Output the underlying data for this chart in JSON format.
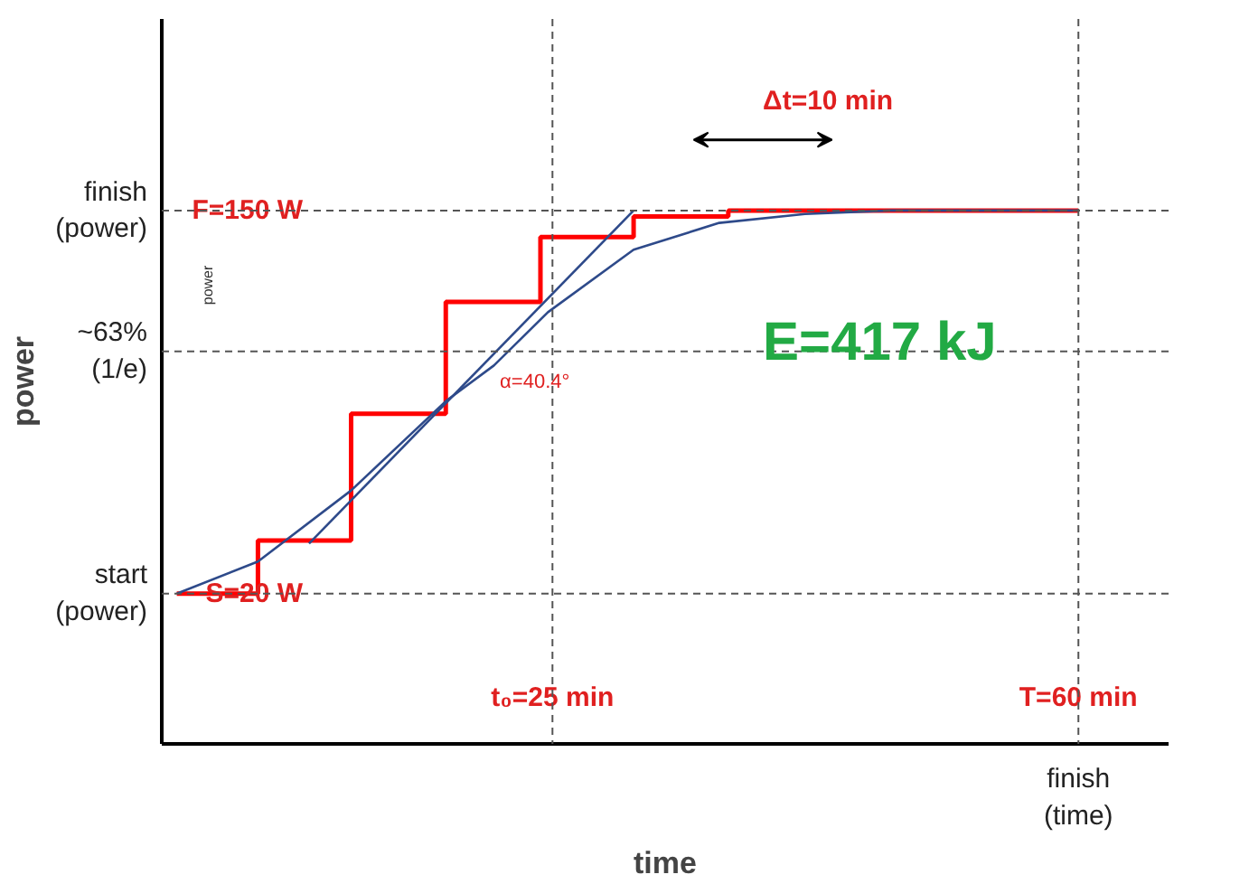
{
  "chart_data": {
    "type": "line",
    "xlabel": "time",
    "ylabel": "power",
    "xlim": [
      -1,
      66
    ],
    "ylim": [
      -31,
      215
    ],
    "xticks": [
      {
        "value": 25,
        "label": "t₀=25 min"
      },
      {
        "value": 60,
        "label": "T=60 min"
      }
    ],
    "yticks": [
      {
        "value": 20,
        "label": "S=20 W"
      },
      {
        "value": 150,
        "label": "F=150 W"
      }
    ],
    "grid": false,
    "marker": "none",
    "series": [
      {
        "type": "step",
        "color": "#ff0000",
        "x": [
          0,
          5.4,
          11.6,
          17.9,
          24.2,
          30.4,
          36.7,
          60
        ],
        "values": [
          20,
          38,
          81,
          119,
          141,
          148,
          150,
          150
        ]
      },
      {
        "color": "#2e4a8a",
        "x": [
          0,
          5.4,
          11.6,
          17.9,
          21.1,
          24.7,
          30.4,
          36.1,
          41.8,
          47.5,
          60
        ],
        "values": [
          20,
          30.9,
          55,
          85.3,
          97.4,
          115.5,
          136.7,
          145.8,
          148.8,
          150,
          150
        ]
      },
      {
        "type": "line",
        "color": "#2e4a8a",
        "x": [
          8.8,
          30.4
        ],
        "values": [
          37,
          150
        ]
      }
    ],
    "ref_lines": [
      {
        "axis": "y",
        "value": 150,
        "line_style": "dashed",
        "color": "#555555"
      },
      {
        "axis": "y",
        "value": 20,
        "line_style": "dashed",
        "color": "#555555"
      },
      {
        "axis": "y",
        "value": 102.2,
        "line_style": "dashed",
        "color": "#555555"
      },
      {
        "axis": "x",
        "value": 25,
        "line_style": "dashed",
        "color": "#555555"
      },
      {
        "axis": "x",
        "value": 60,
        "line_style": "dashed",
        "color": "#555555"
      }
    ],
    "annotations": [
      "E=417 kJ",
      "Δt=10 min",
      "α=40.4°",
      "power",
      "start\n(power)",
      "~63%\n(1/e)",
      "finish\n(power)",
      "finish\n(time)"
    ]
  }
}
